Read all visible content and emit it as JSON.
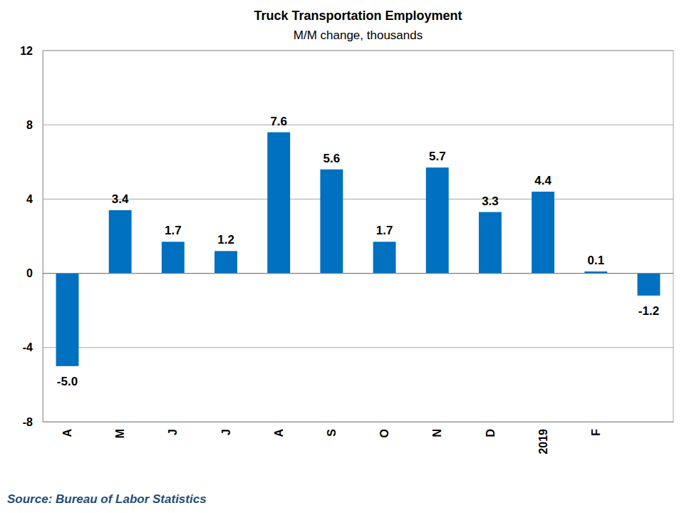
{
  "chart_data": {
    "type": "bar",
    "title": "Truck Transportation Employment",
    "subtitle": "M/M change, thousands",
    "source": "Source: Bureau of Labor Statistics",
    "categories": [
      "A",
      "M",
      "J",
      "J",
      "A",
      "S",
      "O",
      "N",
      "D",
      "2019",
      "F",
      null
    ],
    "values": [
      -5.0,
      3.4,
      1.7,
      1.2,
      7.6,
      5.6,
      1.7,
      5.7,
      3.3,
      4.4,
      0.1,
      -1.2
    ],
    "value_labels": [
      "-5.0",
      "3.4",
      "1.7",
      "1.2",
      "7.6",
      "5.6",
      "1.7",
      "5.7",
      "3.3",
      "4.4",
      "0.1",
      "-1.2"
    ],
    "color": "#0070c0",
    "ylim": [
      -8,
      12
    ],
    "yticks": [
      -8,
      -4,
      0,
      4,
      8,
      12
    ],
    "grid": true,
    "data_labels": true
  }
}
